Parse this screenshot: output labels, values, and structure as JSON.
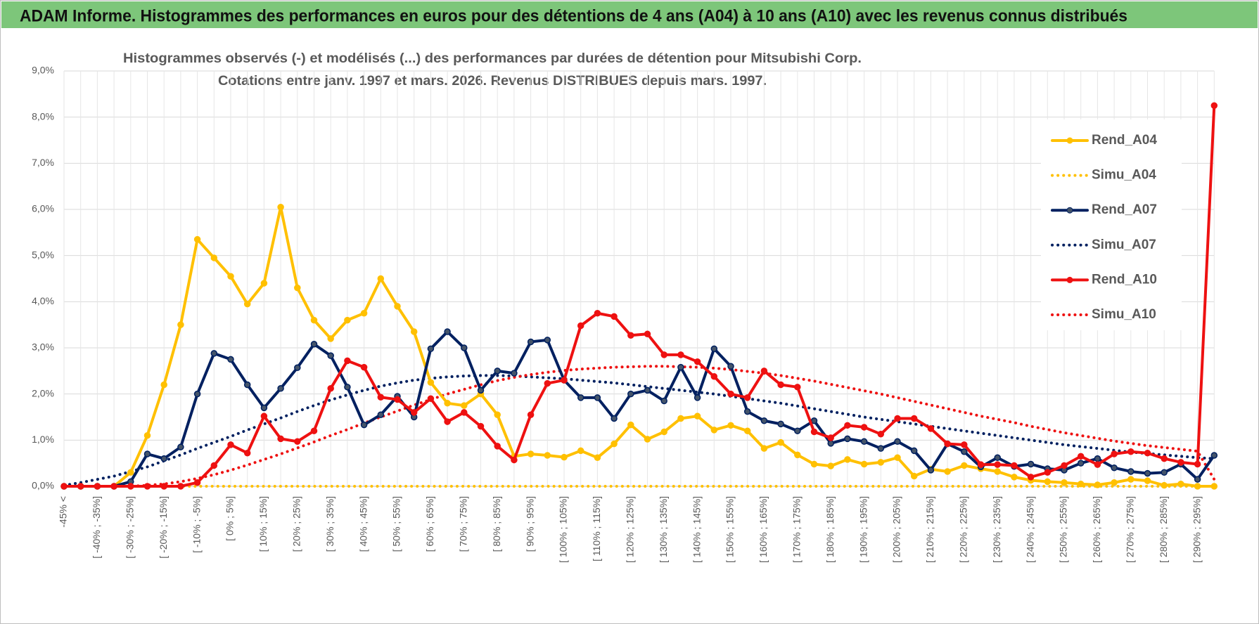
{
  "header": {
    "title": "ADAM Informe. Histogrammes des performances en euros pour des détentions de 4 ans (A04) à 10 ans (A10) avec les revenus connus distribués"
  },
  "chart_data": {
    "type": "line",
    "title": [
      "Histogrammes observés (-) et modélisés (...) des performances par durées de détention pour Mitsubishi Corp.",
      "Cotations entre janv. 1997 et mars. 2026. Revenus DISTRIBUES depuis mars. 1997."
    ],
    "categories": [
      "-45% <",
      null,
      "[ -40% ; -35%]",
      null,
      "[ -30% ; -25%]",
      null,
      "[ -20% ; -15%]",
      null,
      "[ -10% ; -5%]",
      null,
      "[ 0% ; 5%]",
      null,
      "[ 10% ; 15%]",
      null,
      "[ 20% ; 25%]",
      null,
      "[ 30% ; 35%]",
      null,
      "[ 40% ; 45%]",
      null,
      "[ 50% ; 55%]",
      null,
      "[ 60% ; 65%]",
      null,
      "[ 70% ; 75%]",
      null,
      "[ 80% ; 85%]",
      null,
      "[ 90% ; 95%]",
      null,
      "[ 100% ; 105%]",
      null,
      "[ 110% ; 115%]",
      null,
      "[ 120% ; 125%]",
      null,
      "[ 130% ; 135%]",
      null,
      "[ 140% ; 145%]",
      null,
      "[ 150% ; 155%]",
      null,
      "[ 160% ; 165%]",
      null,
      "[ 170% ; 175%]",
      null,
      "[ 180% ; 185%]",
      null,
      "[ 190% ; 195%]",
      null,
      "[ 200% ; 205%]",
      null,
      "[ 210% ; 215%]",
      null,
      "[ 220% ; 225%]",
      null,
      "[ 230% ; 235%]",
      null,
      "[ 240% ; 245%]",
      null,
      "[ 250% ; 255%]",
      null,
      "[ 260% ; 265%]",
      null,
      "[ 270% ; 275%]",
      null,
      "[ 280% ; 285%]",
      null,
      "[ 290% ; 295%]",
      null
    ],
    "series": [
      {
        "name": "Rend_A04",
        "color": "#ffc000",
        "style": "solid",
        "values": [
          0,
          0,
          0,
          0,
          0.3,
          1.1,
          2.2,
          3.5,
          5.35,
          4.95,
          4.55,
          3.95,
          4.4,
          6.05,
          4.3,
          3.6,
          3.2,
          3.6,
          3.75,
          4.5,
          3.9,
          3.35,
          2.25,
          1.8,
          1.75,
          2.0,
          1.55,
          0.65,
          0.7,
          0.67,
          0.63,
          0.77,
          0.62,
          0.92,
          1.33,
          1.02,
          1.18,
          1.47,
          1.52,
          1.22,
          1.32,
          1.2,
          0.82,
          0.95,
          0.68,
          0.48,
          0.44,
          0.58,
          0.48,
          0.52,
          0.62,
          0.22,
          0.37,
          0.32,
          0.45,
          0.38,
          0.32,
          0.2,
          0.13,
          0.1,
          0.08,
          0.05,
          0.03,
          0.08,
          0.15,
          0.12,
          0.02,
          0.05,
          0,
          0
        ]
      },
      {
        "name": "Simu_A04",
        "color": "#ffc000",
        "style": "dotted",
        "values": [
          0,
          0,
          0,
          0,
          0,
          0,
          0,
          0,
          0,
          0,
          0,
          0,
          0,
          0,
          0,
          0,
          0,
          0,
          0,
          0,
          0,
          0,
          0,
          0,
          0,
          0,
          0,
          0,
          0,
          0,
          0,
          0,
          0,
          0,
          0,
          0,
          0,
          0,
          0,
          0,
          0,
          0,
          0,
          0,
          0,
          0,
          0,
          0,
          0,
          0,
          0,
          0,
          0,
          0,
          0,
          0,
          0,
          0,
          0,
          0,
          0,
          0,
          0,
          0,
          0,
          0,
          0,
          0,
          0,
          0
        ]
      },
      {
        "name": "Rend_A07",
        "color": "#002060",
        "style": "solid",
        "values": [
          0,
          0,
          0,
          0,
          0.1,
          0.7,
          0.6,
          0.85,
          2.0,
          2.88,
          2.75,
          2.2,
          1.7,
          2.12,
          2.57,
          3.08,
          2.83,
          2.15,
          1.33,
          1.55,
          1.95,
          1.5,
          2.98,
          3.35,
          3.0,
          2.08,
          2.5,
          2.45,
          3.13,
          3.17,
          2.3,
          1.92,
          1.92,
          1.47,
          2.0,
          2.08,
          1.85,
          2.58,
          1.92,
          2.98,
          2.6,
          1.62,
          1.42,
          1.35,
          1.2,
          1.42,
          0.93,
          1.03,
          0.97,
          0.82,
          0.97,
          0.77,
          0.35,
          0.92,
          0.75,
          0.42,
          0.62,
          0.43,
          0.48,
          0.38,
          0.35,
          0.5,
          0.6,
          0.4,
          0.32,
          0.28,
          0.3,
          0.48,
          0.15,
          0.67
        ]
      },
      {
        "name": "Simu_A07",
        "color": "#002060",
        "style": "dotted",
        "values": [
          0.02,
          0.08,
          0.15,
          0.22,
          0.32,
          0.42,
          0.55,
          0.68,
          0.82,
          0.95,
          1.08,
          1.22,
          1.35,
          1.48,
          1.62,
          1.75,
          1.87,
          1.98,
          2.08,
          2.17,
          2.24,
          2.3,
          2.34,
          2.37,
          2.39,
          2.4,
          2.4,
          2.39,
          2.37,
          2.35,
          2.33,
          2.3,
          2.27,
          2.24,
          2.2,
          2.16,
          2.12,
          2.08,
          2.04,
          2.0,
          1.95,
          1.9,
          1.85,
          1.8,
          1.74,
          1.68,
          1.62,
          1.56,
          1.5,
          1.45,
          1.4,
          1.35,
          1.3,
          1.25,
          1.2,
          1.15,
          1.1,
          1.05,
          1.0,
          0.95,
          0.9,
          0.86,
          0.82,
          0.78,
          0.74,
          0.71,
          0.68,
          0.65,
          0.62,
          0.6
        ]
      },
      {
        "name": "Rend_A10",
        "color": "#ee1111",
        "style": "solid",
        "values": [
          0,
          0,
          0,
          0,
          0,
          0,
          0,
          0,
          0.08,
          0.45,
          0.9,
          0.72,
          1.52,
          1.03,
          0.97,
          1.2,
          2.12,
          2.72,
          2.58,
          1.93,
          1.88,
          1.6,
          1.9,
          1.4,
          1.6,
          1.3,
          0.87,
          0.57,
          1.55,
          2.23,
          2.3,
          3.48,
          3.75,
          3.68,
          3.27,
          3.3,
          2.85,
          2.85,
          2.7,
          2.38,
          2.0,
          1.92,
          2.5,
          2.2,
          2.15,
          1.18,
          1.05,
          1.32,
          1.28,
          1.13,
          1.47,
          1.47,
          1.25,
          0.92,
          0.9,
          0.47,
          0.47,
          0.45,
          0.2,
          0.3,
          0.45,
          0.65,
          0.47,
          0.7,
          0.75,
          0.72,
          0.6,
          0.52,
          0.48,
          8.25
        ]
      },
      {
        "name": "Simu_A10",
        "color": "#ee1111",
        "style": "dotted",
        "values": [
          0,
          0,
          0,
          0,
          0,
          0.02,
          0.05,
          0.1,
          0.17,
          0.25,
          0.35,
          0.46,
          0.58,
          0.7,
          0.83,
          0.96,
          1.1,
          1.23,
          1.37,
          1.5,
          1.63,
          1.76,
          1.88,
          2.0,
          2.1,
          2.2,
          2.29,
          2.36,
          2.42,
          2.47,
          2.51,
          2.54,
          2.56,
          2.58,
          2.59,
          2.6,
          2.6,
          2.59,
          2.58,
          2.56,
          2.53,
          2.49,
          2.45,
          2.4,
          2.34,
          2.28,
          2.21,
          2.14,
          2.07,
          2.0,
          1.92,
          1.84,
          1.76,
          1.68,
          1.6,
          1.52,
          1.45,
          1.38,
          1.3,
          1.23,
          1.16,
          1.1,
          1.04,
          0.98,
          0.93,
          0.88,
          0.84,
          0.8,
          0.76,
          0.15
        ]
      }
    ],
    "ylim": [
      0,
      9
    ],
    "yticks": [
      {
        "value": 0,
        "label": "0,0%"
      },
      {
        "value": 1,
        "label": "1,0%"
      },
      {
        "value": 2,
        "label": "2,0%"
      },
      {
        "value": 3,
        "label": "3,0%"
      },
      {
        "value": 4,
        "label": "4,0%"
      },
      {
        "value": 5,
        "label": "5,0%"
      },
      {
        "value": 6,
        "label": "6,0%"
      },
      {
        "value": 7,
        "label": "7,0%"
      },
      {
        "value": 8,
        "label": "8,0%"
      },
      {
        "value": 9,
        "label": "9,0%"
      }
    ],
    "grid": true,
    "legend": "right"
  }
}
